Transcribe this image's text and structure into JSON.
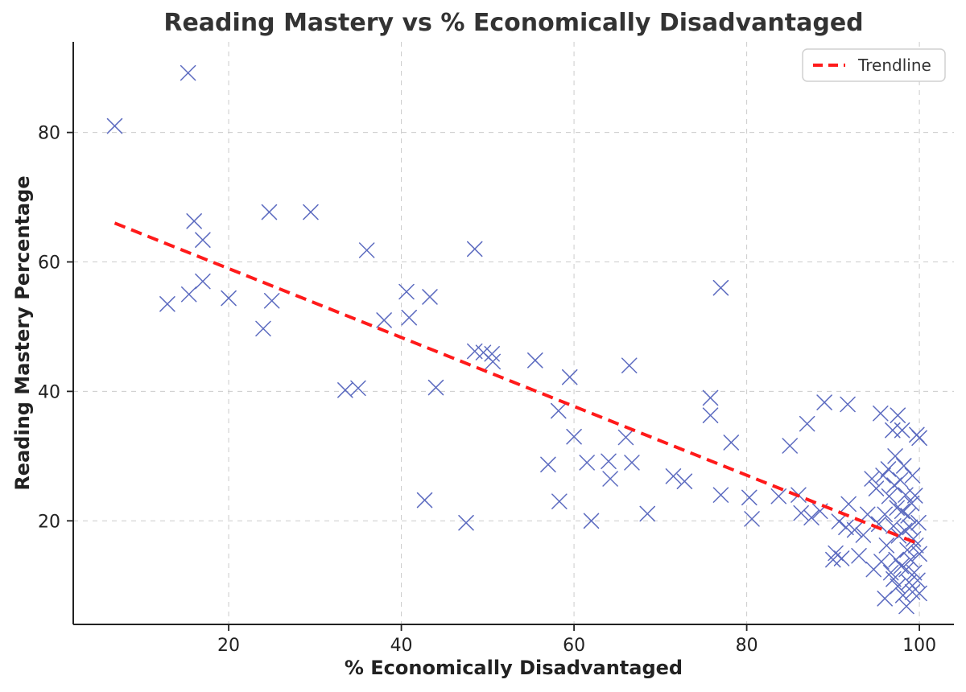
{
  "chart_data": {
    "type": "scatter",
    "title": "Reading Mastery vs % Economically Disadvantaged",
    "xlabel": "% Economically Disadvantaged",
    "ylabel": "Reading Mastery Percentage",
    "xlim": [
      2,
      104
    ],
    "ylim": [
      4,
      94
    ],
    "x_ticks": [
      20,
      40,
      60,
      80,
      100
    ],
    "y_ticks": [
      20,
      40,
      60,
      80
    ],
    "x_tick_labels": [
      "20",
      "40",
      "60",
      "80",
      "100"
    ],
    "y_tick_labels": [
      "20",
      "40",
      "60",
      "80"
    ],
    "grid": true,
    "legend": {
      "position": "top-right",
      "entries": [
        "Trendline"
      ]
    },
    "colors": {
      "points": "#5c6bc0",
      "trendline": "#ff1a1a",
      "axes": "#222222",
      "grid": "#cccccc"
    },
    "series": [
      {
        "type": "scatter",
        "marker": "x",
        "points": [
          [
            6.8,
            81.0
          ],
          [
            15.3,
            89.2
          ],
          [
            12.9,
            53.5
          ],
          [
            15.4,
            55.0
          ],
          [
            16.0,
            66.3
          ],
          [
            17.0,
            63.4
          ],
          [
            17.0,
            57.0
          ],
          [
            20.0,
            54.4
          ],
          [
            24.0,
            49.7
          ],
          [
            24.7,
            67.7
          ],
          [
            25.0,
            54.0
          ],
          [
            29.5,
            67.7
          ],
          [
            33.5,
            40.2
          ],
          [
            35.0,
            40.5
          ],
          [
            36.0,
            61.8
          ],
          [
            38.0,
            51.0
          ],
          [
            40.6,
            55.4
          ],
          [
            40.9,
            51.4
          ],
          [
            42.7,
            23.2
          ],
          [
            43.3,
            54.6
          ],
          [
            44.0,
            40.6
          ],
          [
            47.5,
            19.7
          ],
          [
            48.5,
            62.0
          ],
          [
            48.5,
            46.2
          ],
          [
            49.5,
            46.0
          ],
          [
            50.5,
            45.8
          ],
          [
            50.6,
            44.6
          ],
          [
            55.5,
            44.8
          ],
          [
            57.0,
            28.7
          ],
          [
            58.2,
            37.0
          ],
          [
            58.3,
            23.0
          ],
          [
            59.5,
            42.2
          ],
          [
            60.0,
            33.0
          ],
          [
            61.5,
            29.0
          ],
          [
            62.0,
            20.0
          ],
          [
            64.0,
            29.2
          ],
          [
            64.2,
            26.5
          ],
          [
            66.0,
            32.9
          ],
          [
            66.4,
            44.0
          ],
          [
            66.7,
            29.0
          ],
          [
            68.5,
            21.1
          ],
          [
            71.5,
            26.9
          ],
          [
            72.8,
            26.1
          ],
          [
            75.8,
            39.0
          ],
          [
            75.8,
            36.3
          ],
          [
            77.0,
            56.0
          ],
          [
            77.0,
            24.0
          ],
          [
            78.2,
            32.1
          ],
          [
            80.3,
            23.6
          ],
          [
            80.6,
            20.3
          ],
          [
            83.7,
            23.8
          ],
          [
            85.0,
            31.6
          ],
          [
            86.0,
            24.0
          ],
          [
            86.3,
            21.2
          ],
          [
            87.0,
            35.0
          ],
          [
            87.5,
            20.5
          ],
          [
            88.5,
            21.5
          ],
          [
            89.0,
            38.3
          ],
          [
            90.0,
            14.0
          ],
          [
            90.3,
            15.0
          ],
          [
            90.7,
            19.9
          ],
          [
            91.0,
            14.2
          ],
          [
            91.5,
            19.0
          ],
          [
            91.7,
            38.0
          ],
          [
            91.8,
            22.6
          ],
          [
            92.5,
            18.6
          ],
          [
            93.0,
            14.6
          ],
          [
            93.5,
            17.8
          ],
          [
            94.0,
            21.0
          ],
          [
            94.5,
            26.5
          ],
          [
            94.7,
            12.5
          ],
          [
            95.0,
            25.0
          ],
          [
            95.3,
            19.5
          ],
          [
            95.5,
            36.6
          ],
          [
            95.6,
            13.7
          ],
          [
            95.8,
            27.0
          ],
          [
            96.0,
            21.0
          ],
          [
            96.2,
            16.2
          ],
          [
            96.4,
            28.0
          ],
          [
            96.5,
            23.8
          ],
          [
            96.7,
            12.0
          ],
          [
            96.9,
            34.0
          ],
          [
            97.0,
            19.2
          ],
          [
            97.1,
            25.5
          ],
          [
            97.3,
            14.0
          ],
          [
            97.4,
            22.0
          ],
          [
            97.5,
            36.3
          ],
          [
            97.5,
            9.9
          ],
          [
            97.6,
            17.7
          ],
          [
            97.8,
            26.3
          ],
          [
            97.9,
            13.0
          ],
          [
            98.0,
            21.5
          ],
          [
            98.0,
            34.0
          ],
          [
            98.1,
            8.5
          ],
          [
            98.3,
            18.5
          ],
          [
            98.4,
            24.0
          ],
          [
            98.5,
            12.5
          ],
          [
            98.6,
            15.5
          ],
          [
            98.7,
            20.8
          ],
          [
            98.8,
            10.5
          ],
          [
            98.9,
            19.0
          ],
          [
            99.0,
            14.0
          ],
          [
            99.1,
            22.7
          ],
          [
            99.2,
            9.0
          ],
          [
            99.3,
            17.2
          ],
          [
            99.4,
            12.0
          ],
          [
            99.5,
            23.9
          ],
          [
            99.6,
            16.2
          ],
          [
            99.7,
            33.3
          ],
          [
            99.8,
            10.8
          ],
          [
            99.9,
            19.7
          ],
          [
            100.0,
            8.8
          ],
          [
            100.0,
            14.9
          ],
          [
            100.0,
            32.8
          ],
          [
            99.2,
            27.0
          ],
          [
            97.2,
            30.0
          ],
          [
            98.2,
            28.5
          ],
          [
            96.0,
            8.0
          ],
          [
            98.5,
            6.8
          ],
          [
            97.0,
            11.0
          ]
        ]
      },
      {
        "name": "Trendline",
        "type": "line",
        "style": "dashed",
        "points": [
          [
            6.8,
            66.0
          ],
          [
            100.0,
            16.4
          ]
        ]
      }
    ]
  }
}
